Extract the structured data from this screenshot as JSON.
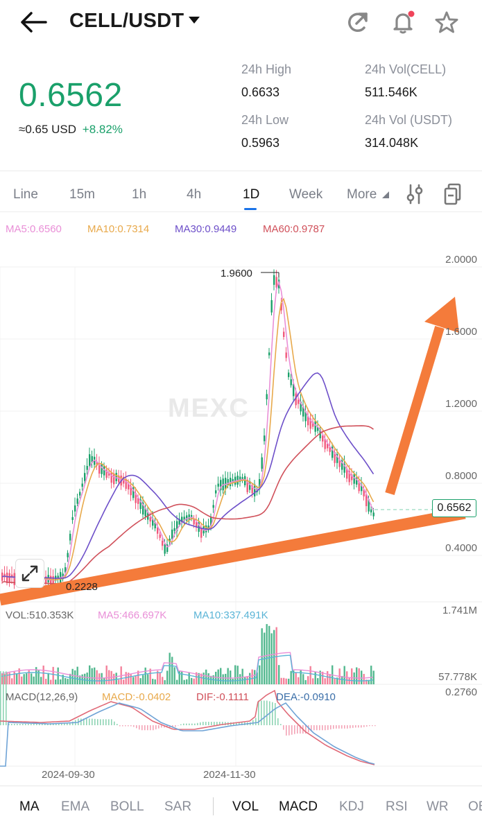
{
  "header": {
    "pair": "CELL/USDT"
  },
  "ticker": {
    "price": "0.6562",
    "usd_equiv": "≈0.65 USD",
    "change": "+8.82%",
    "high_label": "24h High",
    "high_value": "0.6633",
    "low_label": "24h Low",
    "low_value": "0.5963",
    "vol_base_label": "24h Vol(CELL)",
    "vol_base_value": "511.546K",
    "vol_quote_label": "24h Vol (USDT)",
    "vol_quote_value": "314.048K"
  },
  "timeframes": [
    "Line",
    "15m",
    "1h",
    "4h",
    "1D",
    "Week",
    "More"
  ],
  "active_timeframe": "1D",
  "ma_legend": {
    "ma5": "MA5:0.6560",
    "ma10": "MA10:0.7314",
    "ma30": "MA30:0.9449",
    "ma60": "MA60:0.9787"
  },
  "price_axis": [
    "2.0000",
    "1.6000",
    "1.2000",
    "0.8000",
    "0.4000"
  ],
  "chart_annotations": {
    "high_marker": "1.9600",
    "low_marker": "0.2228",
    "current_price_tag": "0.6562"
  },
  "volume": {
    "vol": "VOL:510.353K",
    "ma5": "MA5:466.697K",
    "ma10": "MA10:337.491K",
    "axis_top": "1.741M",
    "axis_bottom": "57.778K"
  },
  "macd": {
    "params": "MACD(12,26,9)",
    "macd": "MACD:-0.0402",
    "dif": "DIF:-0.1111",
    "dea": "DEA:-0.0910",
    "axis_top": "0.2760"
  },
  "date_axis": [
    "2024-09-30",
    "2024-11-30"
  ],
  "indicator_tabs": [
    "MA",
    "EMA",
    "BOLL",
    "SAR",
    "VOL",
    "MACD",
    "KDJ",
    "RSI",
    "WR",
    "OBV"
  ],
  "watermark": "MEXC",
  "colors": {
    "up": "#1aa06a",
    "down": "#f0587a",
    "ma5": "#e98fd7",
    "ma10": "#e8a94b",
    "ma30": "#6d4fc9",
    "ma60": "#d0505a",
    "trend_arrow": "#f47b3b",
    "active_tab": "#1a73e8"
  },
  "icons": {
    "back": "back-arrow-icon",
    "dropdown": "caret-down-icon",
    "share": "refresh-share-icon",
    "alert": "bell-icon",
    "favorite": "star-icon",
    "settings": "sliders-icon",
    "fullscreen": "copy-icon",
    "expand": "expand-icon"
  }
}
